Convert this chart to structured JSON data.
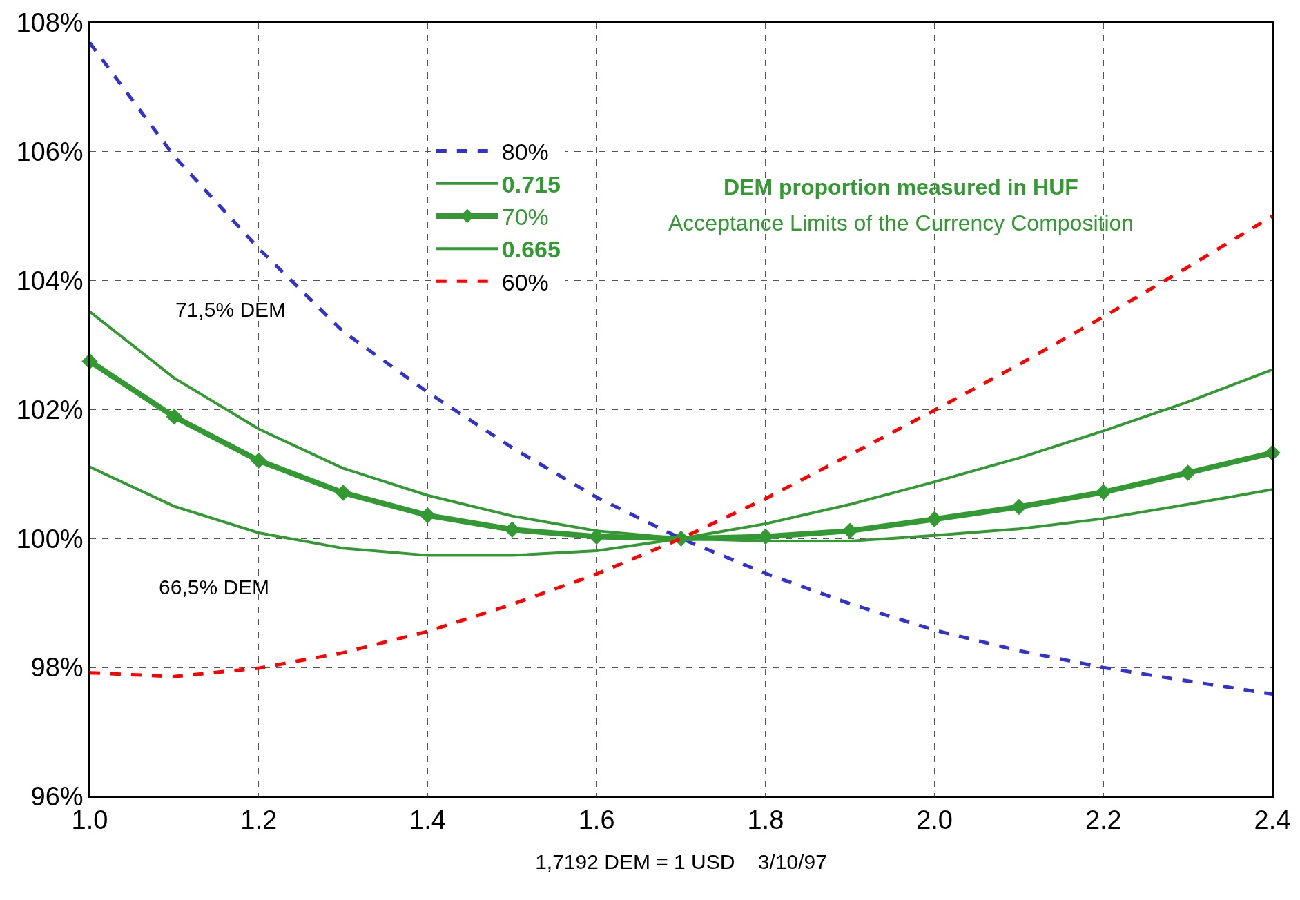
{
  "chart_data": {
    "type": "line",
    "xlabel": "1,7192 DEM = 1 USD    3/10/97",
    "x": [
      1.0,
      1.1,
      1.2,
      1.3,
      1.4,
      1.5,
      1.6,
      1.7,
      1.8,
      1.9,
      2.0,
      2.1,
      2.2,
      2.3,
      2.4
    ],
    "series": [
      {
        "name": "80%",
        "color": "#3333cc",
        "line_style": "dashed",
        "marker": "none",
        "values": [
          107.69,
          105.93,
          104.5,
          103.21,
          102.27,
          101.41,
          100.64,
          100.0,
          99.46,
          98.99,
          98.58,
          98.26,
          98.0,
          97.79,
          97.59
        ]
      },
      {
        "name": "0.715",
        "color": "#339933",
        "line_style": "solid",
        "marker": "none",
        "values": [
          103.52,
          102.49,
          101.7,
          101.09,
          100.67,
          100.35,
          100.12,
          100.0,
          100.23,
          100.53,
          100.88,
          101.25,
          101.67,
          102.12,
          102.62
        ]
      },
      {
        "name": "70%",
        "color": "#339933",
        "line_style": "solid",
        "marker": "diamond",
        "values": [
          102.75,
          101.89,
          101.21,
          100.71,
          100.36,
          100.14,
          100.03,
          100.0,
          100.03,
          100.12,
          100.3,
          100.49,
          100.72,
          101.02,
          101.33
        ]
      },
      {
        "name": "0.665",
        "color": "#339933",
        "line_style": "solid",
        "marker": "none",
        "values": [
          101.11,
          100.5,
          100.09,
          99.85,
          99.74,
          99.74,
          99.81,
          100.0,
          99.96,
          99.96,
          100.05,
          100.15,
          100.31,
          100.53,
          100.76
        ]
      },
      {
        "name": "60%",
        "color": "#ff0000",
        "line_style": "dashed",
        "marker": "none",
        "values": [
          97.92,
          97.86,
          97.99,
          98.23,
          98.56,
          98.98,
          99.45,
          100.0,
          100.62,
          101.3,
          101.99,
          102.7,
          103.44,
          104.21,
          105.0
        ]
      }
    ],
    "xlim": [
      1.0,
      2.4
    ],
    "xticks": [
      {
        "value": 1.0,
        "label": "1.0"
      },
      {
        "value": 1.2,
        "label": "1.2"
      },
      {
        "value": 1.4,
        "label": "1.4"
      },
      {
        "value": 1.6,
        "label": "1.6"
      },
      {
        "value": 1.8,
        "label": "1.8"
      },
      {
        "value": 2.0,
        "label": "2.0"
      },
      {
        "value": 2.2,
        "label": "2.2"
      },
      {
        "value": 2.4,
        "label": "2.4"
      }
    ],
    "ylim": [
      96,
      108
    ],
    "yticks": [
      {
        "value": 96,
        "label": "96%"
      },
      {
        "value": 98,
        "label": "98%"
      },
      {
        "value": 100,
        "label": "100%"
      },
      {
        "value": 102,
        "label": "102%"
      },
      {
        "value": 104,
        "label": "104%"
      },
      {
        "value": 106,
        "label": "106%"
      },
      {
        "value": 108,
        "label": "108%"
      }
    ],
    "annotations": [
      "71,5% DEM",
      "66,5% DEM",
      "DEM proportion measured in HUF",
      "Acceptance Limits of the Currency Composition"
    ],
    "grid": true,
    "legend": "top left"
  }
}
